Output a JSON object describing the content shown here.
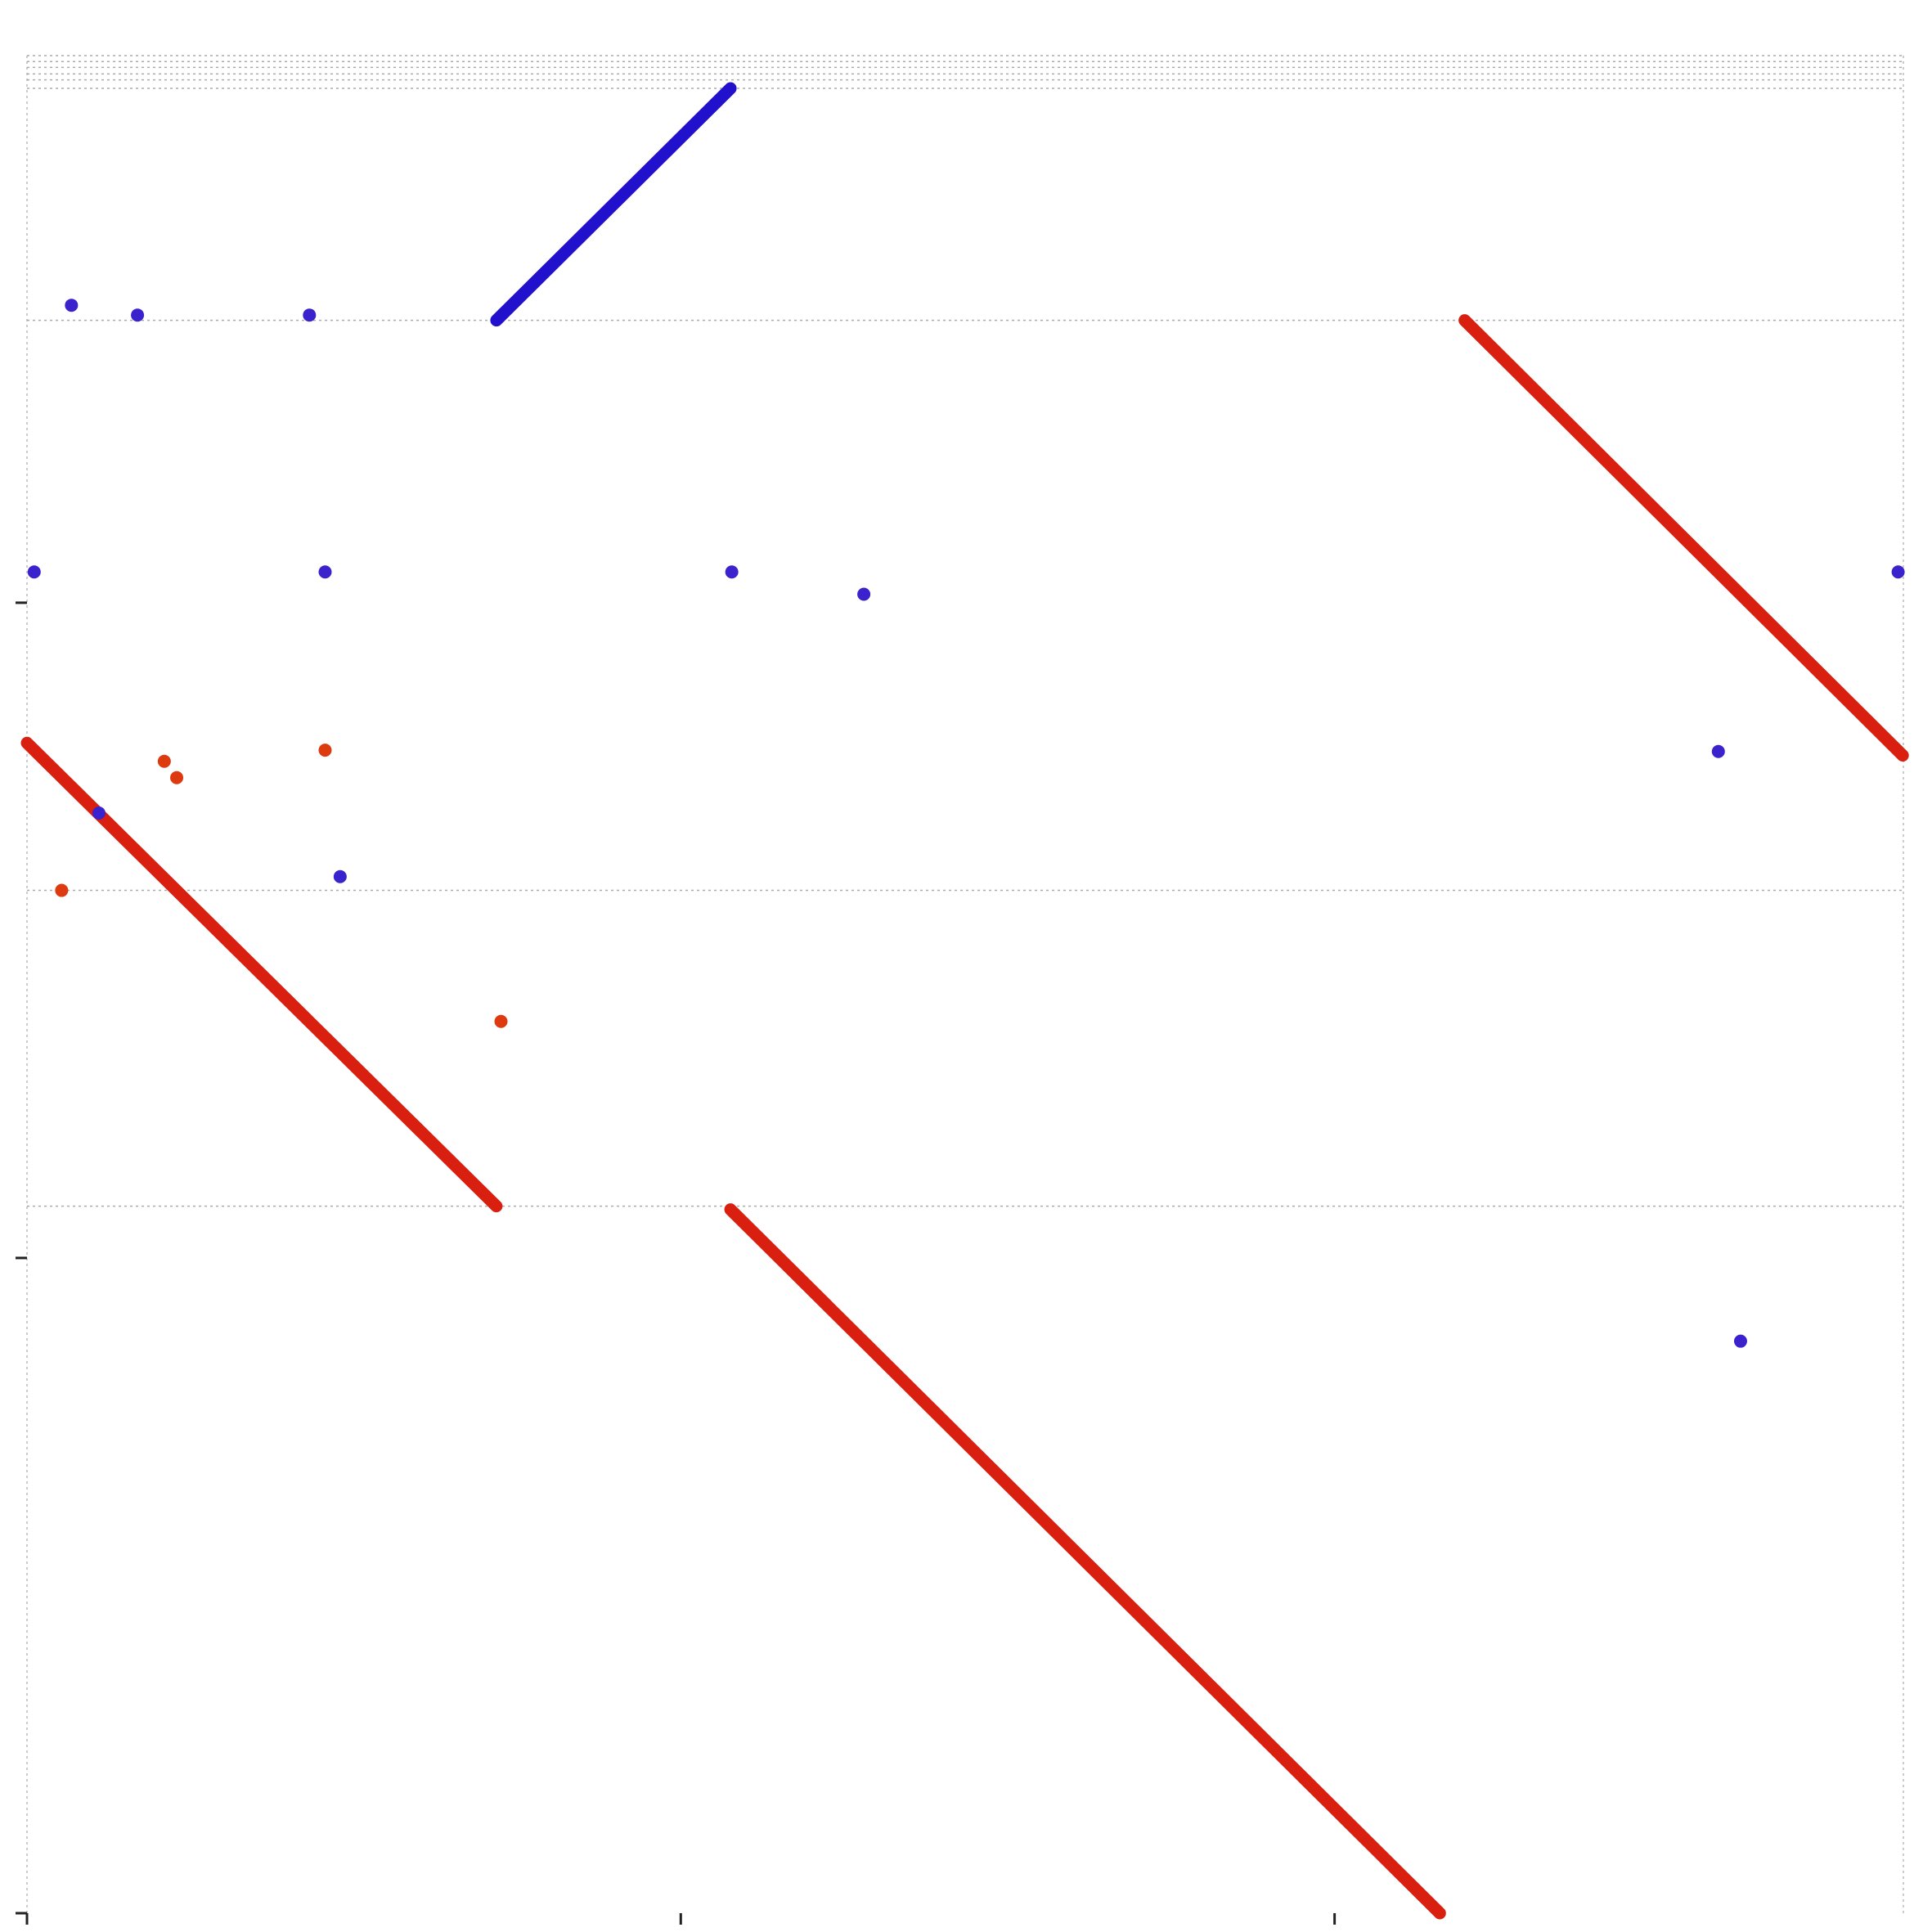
{
  "chart_data": {
    "type": "scatter",
    "xlim": [
      0,
      2870
    ],
    "xticks": [
      0,
      1000,
      2000
    ],
    "ylim": [
      0,
      2835
    ],
    "yticks": [
      0,
      1000,
      2000
    ],
    "hlines": [
      2835,
      2826,
      2817,
      2807,
      2798,
      2785,
      2431,
      1561,
      1079
    ],
    "segments": [
      {
        "color": "#2211cc",
        "x": [
          718,
          1076
        ],
        "y": [
          2431,
          2785
        ]
      },
      {
        "color": "#d92010",
        "x": [
          0,
          718
        ],
        "y": [
          1786,
          1079
        ]
      },
      {
        "color": "#d92010",
        "x": [
          1076,
          2161
        ],
        "y": [
          1074,
          0
        ]
      },
      {
        "color": "#d92010",
        "x": [
          2199,
          2869
        ],
        "y": [
          2431,
          1767
        ]
      }
    ],
    "series": [
      {
        "color": "#3a22cc",
        "x": [
          68,
          169,
          432,
          11,
          456,
          1078,
          1280,
          2862,
          2587,
          110,
          479,
          2621
        ],
        "y": [
          2454,
          2439,
          2439,
          2047,
          2047,
          2047,
          2013,
          2047,
          1773,
          1679,
          1582,
          873
        ]
      },
      {
        "color": "#dd3a10",
        "x": [
          53,
          210,
          229,
          456,
          725
        ],
        "y": [
          1561,
          1758,
          1733,
          1775,
          1361
        ]
      }
    ]
  }
}
